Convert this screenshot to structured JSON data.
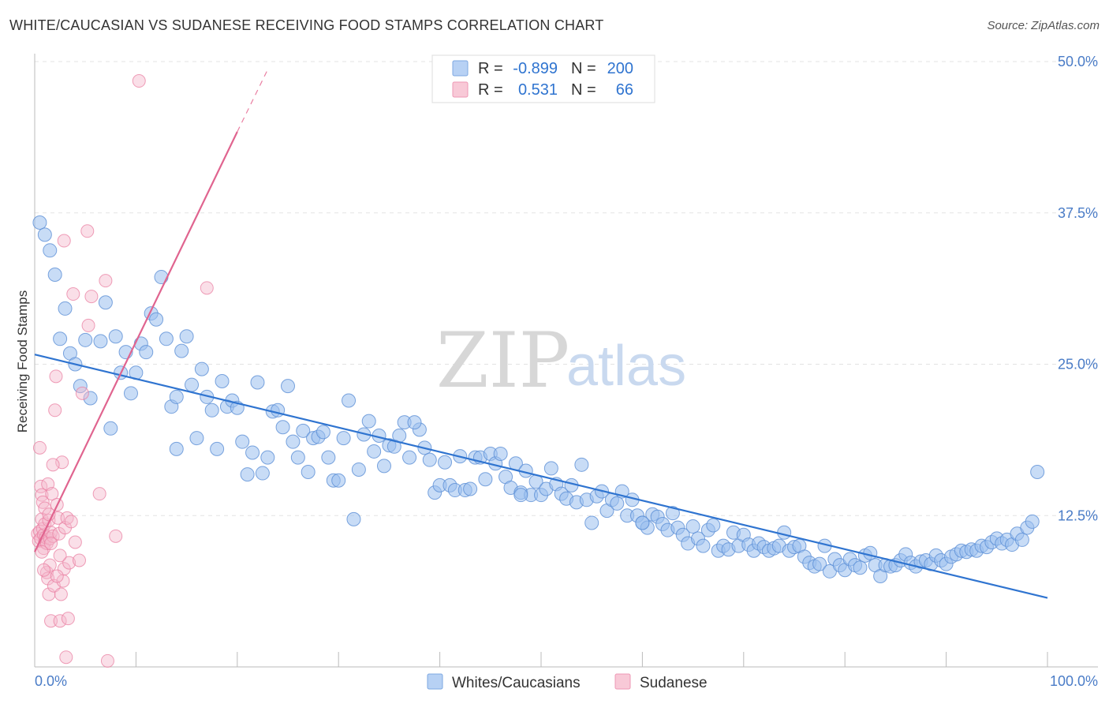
{
  "title": "WHITE/CAUCASIAN VS SUDANESE RECEIVING FOOD STAMPS CORRELATION CHART",
  "source": "Source: ZipAtlas.com",
  "watermark": {
    "zip": "ZIP",
    "atlas": "atlas"
  },
  "colors": {
    "blue": "#9bbfee",
    "blue_stroke": "#5b8fd6",
    "blue_line": "#2f74d0",
    "pink": "#f5b8cb",
    "pink_stroke": "#ea7fa2",
    "pink_line": "#e0648f",
    "tick": "#4a7cc7"
  },
  "legend_top": {
    "rows": [
      {
        "r_label": "R =",
        "r_value": "-0.899",
        "n_label": "N =",
        "n_value": "200"
      },
      {
        "r_label": "R =",
        "r_value": "0.531",
        "n_label": "N =",
        "n_value": "66"
      }
    ]
  },
  "legend_bottom": {
    "items": [
      "Whites/Caucasians",
      "Sudanese"
    ]
  },
  "chart_data": {
    "type": "scatter",
    "title": "WHITE/CAUCASIAN VS SUDANESE RECEIVING FOOD STAMPS CORRELATION CHART",
    "xlabel": "",
    "ylabel": "Receiving Food Stamps",
    "xlim": [
      0,
      100
    ],
    "ylim": [
      0,
      50
    ],
    "x_tick_labels": [
      "0.0%",
      "100.0%"
    ],
    "y_ticks": [
      12.5,
      25.0,
      37.5,
      50.0
    ],
    "y_tick_labels": [
      "12.5%",
      "25.0%",
      "37.5%",
      "50.0%"
    ],
    "grid": true,
    "legend_placement": "top-center",
    "series": [
      {
        "name": "Whites/Caucasians",
        "r": -0.899,
        "n": 200,
        "trend": {
          "x": [
            0,
            100
          ],
          "y": [
            25.8,
            5.7
          ]
        },
        "points": [
          [
            0.5,
            36.7
          ],
          [
            1,
            35.7
          ],
          [
            1.5,
            34.4
          ],
          [
            2,
            32.4
          ],
          [
            3,
            29.6
          ],
          [
            2.5,
            27.1
          ],
          [
            3.5,
            25.9
          ],
          [
            4,
            25.0
          ],
          [
            4.5,
            23.2
          ],
          [
            5.5,
            22.2
          ],
          [
            6.5,
            26.9
          ],
          [
            5,
            27.0
          ],
          [
            7,
            30.1
          ],
          [
            7.5,
            19.7
          ],
          [
            8,
            27.3
          ],
          [
            9,
            26.0
          ],
          [
            8.5,
            24.3
          ],
          [
            9.5,
            22.6
          ],
          [
            10,
            24.3
          ],
          [
            10.5,
            26.7
          ],
          [
            11,
            26.0
          ],
          [
            11.5,
            29.2
          ],
          [
            12,
            28.7
          ],
          [
            12.5,
            32.2
          ],
          [
            13,
            27.1
          ],
          [
            13.5,
            21.5
          ],
          [
            14,
            18.0
          ],
          [
            14,
            22.3
          ],
          [
            14.5,
            26.1
          ],
          [
            15,
            27.3
          ],
          [
            15.5,
            23.3
          ],
          [
            16,
            18.9
          ],
          [
            16.5,
            24.6
          ],
          [
            17,
            22.3
          ],
          [
            17.5,
            21.2
          ],
          [
            18,
            18.0
          ],
          [
            18.5,
            23.6
          ],
          [
            19,
            21.5
          ],
          [
            19.5,
            22.0
          ],
          [
            20,
            21.4
          ],
          [
            20.5,
            18.6
          ],
          [
            21,
            15.9
          ],
          [
            21.5,
            17.7
          ],
          [
            22,
            23.5
          ],
          [
            22.5,
            16.0
          ],
          [
            23,
            17.3
          ],
          [
            23.5,
            21.1
          ],
          [
            24,
            21.2
          ],
          [
            24.5,
            19.8
          ],
          [
            25,
            23.2
          ],
          [
            25.5,
            18.6
          ],
          [
            26,
            17.3
          ],
          [
            26.5,
            19.5
          ],
          [
            27,
            16.1
          ],
          [
            27.5,
            18.9
          ],
          [
            28,
            19.0
          ],
          [
            28.5,
            19.4
          ],
          [
            29,
            17.3
          ],
          [
            29.5,
            15.4
          ],
          [
            30,
            15.4
          ],
          [
            30.5,
            18.9
          ],
          [
            31,
            22.0
          ],
          [
            31.5,
            12.2
          ],
          [
            32,
            16.3
          ],
          [
            32.5,
            19.2
          ],
          [
            33,
            20.3
          ],
          [
            33.5,
            17.8
          ],
          [
            34,
            19.1
          ],
          [
            34.5,
            16.6
          ],
          [
            35,
            18.3
          ],
          [
            35.5,
            18.2
          ],
          [
            36,
            19.1
          ],
          [
            36.5,
            20.2
          ],
          [
            37,
            17.3
          ],
          [
            38,
            19.6
          ],
          [
            38.5,
            18.1
          ],
          [
            39,
            17.1
          ],
          [
            39.5,
            14.4
          ],
          [
            40,
            15.0
          ],
          [
            40.5,
            16.9
          ],
          [
            41,
            15.0
          ],
          [
            41.5,
            14.6
          ],
          [
            42,
            17.4
          ],
          [
            42.5,
            14.6
          ],
          [
            43,
            14.7
          ],
          [
            43.5,
            17.3
          ],
          [
            44,
            17.3
          ],
          [
            44.5,
            15.5
          ],
          [
            45,
            17.6
          ],
          [
            45.5,
            16.8
          ],
          [
            46,
            17.6
          ],
          [
            46.5,
            15.7
          ],
          [
            47,
            14.8
          ],
          [
            47.5,
            16.8
          ],
          [
            48,
            14.4
          ],
          [
            48.5,
            16.2
          ],
          [
            49,
            14.2
          ],
          [
            49.5,
            15.3
          ],
          [
            50,
            14.2
          ],
          [
            50.5,
            14.7
          ],
          [
            51,
            16.4
          ],
          [
            51.5,
            15.1
          ],
          [
            52,
            14.3
          ],
          [
            52.5,
            13.9
          ],
          [
            53,
            15.0
          ],
          [
            53.5,
            13.6
          ],
          [
            54,
            16.7
          ],
          [
            54.5,
            13.8
          ],
          [
            55,
            11.9
          ],
          [
            55.5,
            14.1
          ],
          [
            56,
            14.5
          ],
          [
            56.5,
            12.9
          ],
          [
            57,
            13.8
          ],
          [
            57.5,
            13.5
          ],
          [
            58,
            14.5
          ],
          [
            58.5,
            12.5
          ],
          [
            59,
            13.8
          ],
          [
            59.5,
            12.5
          ],
          [
            60,
            11.9
          ],
          [
            60.5,
            11.5
          ],
          [
            61,
            12.6
          ],
          [
            61.5,
            12.4
          ],
          [
            62,
            11.8
          ],
          [
            62.5,
            11.3
          ],
          [
            63,
            12.7
          ],
          [
            63.5,
            11.5
          ],
          [
            64,
            10.9
          ],
          [
            64.5,
            10.2
          ],
          [
            65,
            11.6
          ],
          [
            65.5,
            10.6
          ],
          [
            66,
            10.0
          ],
          [
            66.5,
            11.3
          ],
          [
            67,
            11.7
          ],
          [
            67.5,
            9.6
          ],
          [
            68,
            10.0
          ],
          [
            68.5,
            9.7
          ],
          [
            69,
            11.1
          ],
          [
            69.5,
            10.0
          ],
          [
            70,
            10.9
          ],
          [
            70.5,
            10.1
          ],
          [
            71,
            9.6
          ],
          [
            71.5,
            10.2
          ],
          [
            72,
            9.9
          ],
          [
            72.5,
            9.6
          ],
          [
            73,
            9.8
          ],
          [
            73.5,
            10.0
          ],
          [
            74,
            11.1
          ],
          [
            74.5,
            9.6
          ],
          [
            75,
            9.9
          ],
          [
            75.5,
            10.0
          ],
          [
            76,
            9.1
          ],
          [
            76.5,
            8.6
          ],
          [
            77,
            8.3
          ],
          [
            77.5,
            8.5
          ],
          [
            78,
            10.0
          ],
          [
            78.5,
            7.9
          ],
          [
            79,
            8.9
          ],
          [
            79.5,
            8.4
          ],
          [
            80,
            8.0
          ],
          [
            80.5,
            8.9
          ],
          [
            81,
            8.4
          ],
          [
            81.5,
            8.2
          ],
          [
            82,
            9.2
          ],
          [
            82.5,
            9.4
          ],
          [
            83,
            8.4
          ],
          [
            83.5,
            7.5
          ],
          [
            84,
            8.4
          ],
          [
            84.5,
            8.3
          ],
          [
            85,
            8.4
          ],
          [
            85.5,
            8.8
          ],
          [
            86,
            9.3
          ],
          [
            86.5,
            8.6
          ],
          [
            87,
            8.3
          ],
          [
            87.5,
            8.7
          ],
          [
            88,
            8.8
          ],
          [
            88.5,
            8.5
          ],
          [
            89,
            9.2
          ],
          [
            89.5,
            8.8
          ],
          [
            90,
            8.5
          ],
          [
            90.5,
            9.1
          ],
          [
            91,
            9.3
          ],
          [
            91.5,
            9.6
          ],
          [
            92,
            9.5
          ],
          [
            92.5,
            9.7
          ],
          [
            93,
            9.6
          ],
          [
            93.5,
            10.0
          ],
          [
            94,
            9.9
          ],
          [
            94.5,
            10.3
          ],
          [
            95,
            10.6
          ],
          [
            95.5,
            10.2
          ],
          [
            96,
            10.5
          ],
          [
            96.5,
            10.1
          ],
          [
            97,
            11.0
          ],
          [
            97.5,
            10.5
          ],
          [
            98,
            11.5
          ],
          [
            98.5,
            12.0
          ],
          [
            99,
            16.1
          ],
          [
            37.5,
            20.2
          ],
          [
            48,
            14.2
          ],
          [
            60,
            11.9
          ]
        ]
      },
      {
        "name": "Sudanese",
        "r": 0.531,
        "n": 66,
        "trend": {
          "x": [
            0,
            20
          ],
          "y": [
            9.5,
            44.2
          ]
        },
        "trend_dashed": {
          "x": [
            20,
            23.1
          ],
          "y": [
            44.2,
            49.5
          ]
        },
        "points": [
          [
            0.3,
            11.0
          ],
          [
            0.4,
            10.4
          ],
          [
            0.5,
            11.2
          ],
          [
            0.6,
            10.6
          ],
          [
            0.7,
            12.2
          ],
          [
            0.8,
            11.4
          ],
          [
            0.9,
            10.9
          ],
          [
            1.0,
            10.3
          ],
          [
            0.5,
            18.1
          ],
          [
            0.6,
            14.9
          ],
          [
            0.7,
            14.2
          ],
          [
            0.8,
            13.6
          ],
          [
            0.9,
            9.8
          ],
          [
            1.0,
            11.8
          ],
          [
            1.1,
            10.7
          ],
          [
            1.2,
            10.2
          ],
          [
            1.3,
            15.1
          ],
          [
            1.4,
            12.1
          ],
          [
            1.5,
            10.6
          ],
          [
            1.6,
            11.1
          ],
          [
            1.2,
            7.8
          ],
          [
            1.3,
            7.3
          ],
          [
            1.4,
            6.0
          ],
          [
            1.5,
            8.4
          ],
          [
            1.6,
            3.8
          ],
          [
            1.7,
            14.3
          ],
          [
            1.8,
            10.8
          ],
          [
            1.9,
            6.7
          ],
          [
            2.0,
            21.2
          ],
          [
            2.1,
            24.0
          ],
          [
            2.2,
            13.4
          ],
          [
            2.3,
            12.3
          ],
          [
            2.4,
            11.0
          ],
          [
            2.5,
            3.8
          ],
          [
            2.6,
            6.0
          ],
          [
            2.7,
            16.9
          ],
          [
            2.8,
            7.1
          ],
          [
            2.9,
            8.1
          ],
          [
            3.0,
            11.5
          ],
          [
            3.1,
            0.8
          ],
          [
            3.2,
            12.3
          ],
          [
            3.3,
            4.0
          ],
          [
            3.4,
            8.6
          ],
          [
            2.9,
            35.2
          ],
          [
            3.8,
            30.8
          ],
          [
            4.4,
            8.8
          ],
          [
            4.7,
            22.6
          ],
          [
            5.2,
            36.0
          ],
          [
            5.3,
            28.2
          ],
          [
            5.6,
            30.6
          ],
          [
            6.4,
            14.3
          ],
          [
            7.0,
            31.9
          ],
          [
            7.2,
            0.5
          ],
          [
            8.0,
            10.8
          ],
          [
            10.3,
            48.4
          ],
          [
            17.0,
            31.3
          ],
          [
            1.8,
            16.7
          ],
          [
            2.2,
            7.5
          ],
          [
            1.0,
            13.1
          ],
          [
            1.6,
            10.2
          ],
          [
            0.9,
            8.0
          ],
          [
            2.5,
            9.2
          ],
          [
            1.4,
            12.6
          ],
          [
            0.7,
            9.5
          ],
          [
            3.6,
            12.0
          ],
          [
            4.0,
            10.3
          ]
        ]
      }
    ]
  }
}
